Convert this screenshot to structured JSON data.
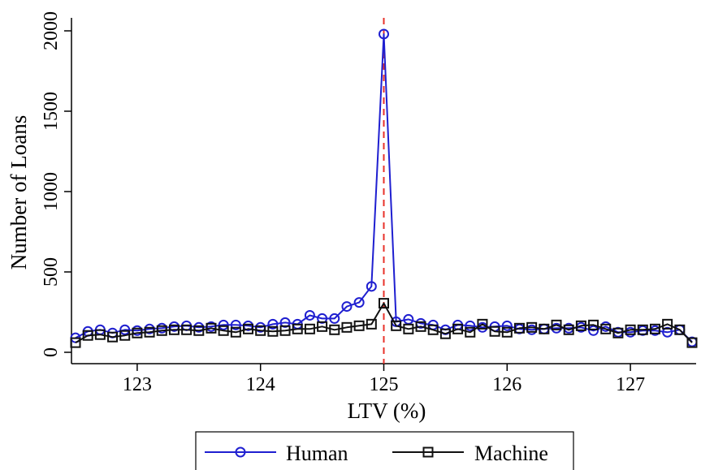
{
  "chart_data": {
    "type": "line",
    "title": "",
    "xlabel": "LTV (%)",
    "ylabel": "Number of Loans",
    "xlim": [
      122.5,
      127.5
    ],
    "ylim": [
      0,
      2000
    ],
    "x_ticks": [
      123,
      124,
      125,
      126,
      127
    ],
    "y_ticks": [
      0,
      500,
      1000,
      1500,
      2000
    ],
    "grid": false,
    "legend_position": "bottom",
    "threshold": {
      "x": 125,
      "color": "#e8312a",
      "style": "dashed"
    },
    "x": [
      122.5,
      122.6,
      122.7,
      122.8,
      122.9,
      123.0,
      123.1,
      123.2,
      123.3,
      123.4,
      123.5,
      123.6,
      123.7,
      123.8,
      123.9,
      124.0,
      124.1,
      124.2,
      124.3,
      124.4,
      124.5,
      124.6,
      124.7,
      124.8,
      124.9,
      125.0,
      125.1,
      125.2,
      125.3,
      125.4,
      125.5,
      125.6,
      125.7,
      125.8,
      125.9,
      126.0,
      126.1,
      126.2,
      126.3,
      126.4,
      126.5,
      126.6,
      126.7,
      126.8,
      126.9,
      127.0,
      127.1,
      127.2,
      127.3,
      127.4,
      127.5
    ],
    "series": [
      {
        "name": "Human",
        "color": "#1f1fd0",
        "marker": "circle",
        "values": [
          90,
          130,
          140,
          120,
          140,
          135,
          145,
          150,
          160,
          165,
          155,
          160,
          170,
          170,
          165,
          155,
          175,
          185,
          175,
          230,
          210,
          210,
          285,
          310,
          410,
          1980,
          190,
          205,
          180,
          170,
          140,
          170,
          165,
          155,
          160,
          165,
          145,
          140,
          145,
          150,
          150,
          155,
          135,
          160,
          125,
          125,
          135,
          135,
          125,
          140,
          65
        ]
      },
      {
        "name": "Machine",
        "color": "#111111",
        "marker": "square",
        "values": [
          60,
          105,
          110,
          95,
          105,
          120,
          125,
          135,
          140,
          140,
          135,
          150,
          135,
          125,
          145,
          135,
          130,
          135,
          145,
          145,
          160,
          140,
          155,
          165,
          175,
          305,
          165,
          145,
          160,
          140,
          115,
          145,
          125,
          175,
          130,
          125,
          150,
          155,
          145,
          170,
          140,
          165,
          170,
          145,
          120,
          140,
          140,
          145,
          175,
          140,
          60
        ]
      }
    ]
  }
}
